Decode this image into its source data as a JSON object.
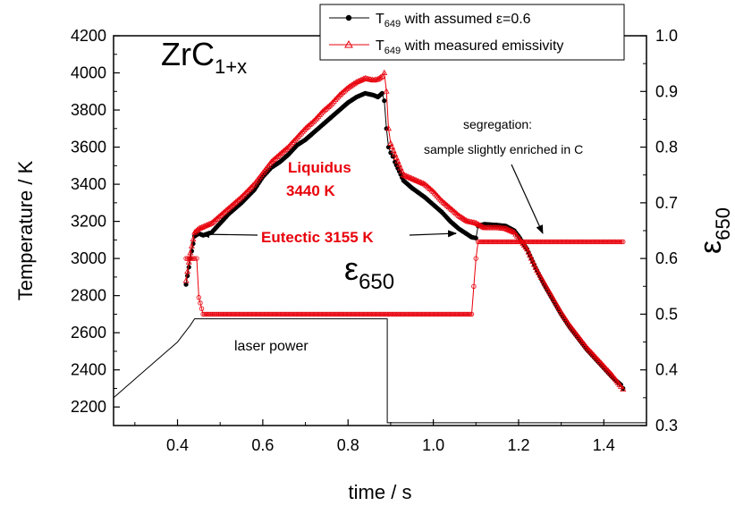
{
  "chart_data": {
    "type": "line",
    "title": "ZrC",
    "title_sub": "1+x",
    "xlabel": "time / s",
    "ylabel_left": "Temperature / K",
    "ylabel_right": "ε",
    "ylabel_right_sub": "650",
    "xlim": [
      0.25,
      1.5
    ],
    "ylim_left": [
      2100,
      4200
    ],
    "ylim_right": [
      0.3,
      1.0
    ],
    "x_ticks": [
      0.4,
      0.6,
      0.8,
      1.0,
      1.2,
      1.4
    ],
    "x_tick_labels": [
      "0.4",
      "0.6",
      "0.8",
      "1.0",
      "1.2",
      "1.4"
    ],
    "y_left_ticks": [
      2200,
      2400,
      2600,
      2800,
      3000,
      3200,
      3400,
      3600,
      3800,
      4000,
      4200
    ],
    "y_left_tick_labels": [
      "2200",
      "2400",
      "2600",
      "2800",
      "3000",
      "3200",
      "3400",
      "3600",
      "3800",
      "4000",
      "4200"
    ],
    "y_right_ticks": [
      0.3,
      0.4,
      0.5,
      0.6,
      0.7,
      0.8,
      0.9,
      1.0
    ],
    "y_right_tick_labels": [
      "0.3",
      "0.4",
      "0.5",
      "0.6",
      "0.7",
      "0.8",
      "0.9",
      "1.0"
    ],
    "grid": false,
    "legend_position": "top-right",
    "legend": [
      {
        "text_pre": "T",
        "text_sub": "649",
        "text_post": " with assumed ε=0.6",
        "color": "#000000",
        "marker": "circle"
      },
      {
        "text_pre": "T",
        "text_sub": "649",
        "text_post": " with measured emissivity",
        "color": "#e8000b",
        "marker": "triangle"
      }
    ],
    "series": [
      {
        "name": "T649 with assumed ε=0.6",
        "axis": "left",
        "color": "#000000",
        "marker": "circle",
        "points": [
          [
            0.42,
            2860
          ],
          [
            0.43,
            3000
          ],
          [
            0.44,
            3120
          ],
          [
            0.45,
            3135
          ],
          [
            0.46,
            3125
          ],
          [
            0.48,
            3140
          ],
          [
            0.5,
            3190
          ],
          [
            0.52,
            3240
          ],
          [
            0.55,
            3300
          ],
          [
            0.58,
            3370
          ],
          [
            0.6,
            3440
          ],
          [
            0.62,
            3490
          ],
          [
            0.64,
            3520
          ],
          [
            0.66,
            3560
          ],
          [
            0.68,
            3610
          ],
          [
            0.7,
            3640
          ],
          [
            0.72,
            3680
          ],
          [
            0.74,
            3720
          ],
          [
            0.76,
            3760
          ],
          [
            0.78,
            3800
          ],
          [
            0.8,
            3840
          ],
          [
            0.82,
            3870
          ],
          [
            0.84,
            3890
          ],
          [
            0.86,
            3880
          ],
          [
            0.87,
            3870
          ],
          [
            0.88,
            3890
          ],
          [
            0.885,
            3850
          ],
          [
            0.89,
            3700
          ],
          [
            0.895,
            3600
          ],
          [
            0.9,
            3570
          ],
          [
            0.905,
            3550
          ],
          [
            0.91,
            3520
          ],
          [
            0.92,
            3470
          ],
          [
            0.93,
            3420
          ],
          [
            0.95,
            3380
          ],
          [
            0.98,
            3330
          ],
          [
            1.0,
            3290
          ],
          [
            1.02,
            3250
          ],
          [
            1.04,
            3200
          ],
          [
            1.06,
            3160
          ],
          [
            1.08,
            3130
          ],
          [
            1.09,
            3115
          ],
          [
            1.1,
            3110
          ],
          [
            1.105,
            3175
          ],
          [
            1.12,
            3185
          ],
          [
            1.15,
            3180
          ],
          [
            1.17,
            3175
          ],
          [
            1.19,
            3150
          ],
          [
            1.2,
            3120
          ],
          [
            1.22,
            3050
          ],
          [
            1.24,
            2950
          ],
          [
            1.26,
            2860
          ],
          [
            1.28,
            2780
          ],
          [
            1.3,
            2700
          ],
          [
            1.32,
            2630
          ],
          [
            1.34,
            2570
          ],
          [
            1.36,
            2510
          ],
          [
            1.38,
            2460
          ],
          [
            1.4,
            2410
          ],
          [
            1.42,
            2360
          ],
          [
            1.44,
            2320
          ],
          [
            1.445,
            2300
          ]
        ]
      },
      {
        "name": "T649 with measured emissivity",
        "axis": "left",
        "color": "#e8000b",
        "marker": "triangle",
        "points": [
          [
            0.42,
            2880
          ],
          [
            0.43,
            3030
          ],
          [
            0.44,
            3140
          ],
          [
            0.45,
            3160
          ],
          [
            0.46,
            3170
          ],
          [
            0.48,
            3190
          ],
          [
            0.5,
            3230
          ],
          [
            0.52,
            3270
          ],
          [
            0.55,
            3330
          ],
          [
            0.58,
            3400
          ],
          [
            0.6,
            3460
          ],
          [
            0.62,
            3520
          ],
          [
            0.64,
            3560
          ],
          [
            0.66,
            3600
          ],
          [
            0.68,
            3650
          ],
          [
            0.7,
            3700
          ],
          [
            0.72,
            3740
          ],
          [
            0.74,
            3790
          ],
          [
            0.76,
            3830
          ],
          [
            0.78,
            3880
          ],
          [
            0.8,
            3920
          ],
          [
            0.82,
            3950
          ],
          [
            0.84,
            3970
          ],
          [
            0.86,
            3960
          ],
          [
            0.87,
            3965
          ],
          [
            0.88,
            3980
          ],
          [
            0.885,
            4000
          ],
          [
            0.89,
            3900
          ],
          [
            0.895,
            3700
          ],
          [
            0.9,
            3620
          ],
          [
            0.91,
            3560
          ],
          [
            0.93,
            3450
          ],
          [
            0.95,
            3430
          ],
          [
            0.98,
            3400
          ],
          [
            1.0,
            3360
          ],
          [
            1.02,
            3310
          ],
          [
            1.04,
            3270
          ],
          [
            1.06,
            3230
          ],
          [
            1.08,
            3200
          ],
          [
            1.1,
            3190
          ],
          [
            1.12,
            3165
          ],
          [
            1.15,
            3165
          ],
          [
            1.17,
            3160
          ],
          [
            1.19,
            3140
          ],
          [
            1.2,
            3110
          ],
          [
            1.22,
            3050
          ],
          [
            1.24,
            2950
          ],
          [
            1.26,
            2870
          ],
          [
            1.28,
            2790
          ],
          [
            1.3,
            2710
          ],
          [
            1.32,
            2640
          ],
          [
            1.34,
            2580
          ],
          [
            1.36,
            2520
          ],
          [
            1.38,
            2470
          ],
          [
            1.4,
            2420
          ],
          [
            1.42,
            2370
          ],
          [
            1.44,
            2310
          ],
          [
            1.445,
            2295
          ]
        ]
      },
      {
        "name": "ε650",
        "axis": "right",
        "color": "#e8000b",
        "marker": "circle-open",
        "points": [
          [
            0.42,
            0.6
          ],
          [
            0.44,
            0.6
          ],
          [
            0.445,
            0.6
          ],
          [
            0.45,
            0.53
          ],
          [
            0.46,
            0.5
          ],
          [
            0.5,
            0.5
          ],
          [
            0.6,
            0.5
          ],
          [
            0.7,
            0.5
          ],
          [
            0.8,
            0.5
          ],
          [
            0.9,
            0.5
          ],
          [
            1.0,
            0.5
          ],
          [
            1.09,
            0.5
          ],
          [
            1.095,
            0.55
          ],
          [
            1.1,
            0.6
          ],
          [
            1.105,
            0.63
          ],
          [
            1.2,
            0.63
          ],
          [
            1.3,
            0.63
          ],
          [
            1.4,
            0.63
          ],
          [
            1.445,
            0.63
          ]
        ]
      },
      {
        "name": "laser power",
        "axis": "left",
        "color": "#000000",
        "marker": "none",
        "points": [
          [
            0.25,
            2250
          ],
          [
            0.26,
            2270
          ],
          [
            0.27,
            2290
          ],
          [
            0.28,
            2310
          ],
          [
            0.29,
            2330
          ],
          [
            0.3,
            2350
          ],
          [
            0.31,
            2370
          ],
          [
            0.32,
            2390
          ],
          [
            0.33,
            2410
          ],
          [
            0.34,
            2430
          ],
          [
            0.35,
            2450
          ],
          [
            0.36,
            2470
          ],
          [
            0.37,
            2490
          ],
          [
            0.38,
            2510
          ],
          [
            0.39,
            2530
          ],
          [
            0.4,
            2550
          ],
          [
            0.41,
            2580
          ],
          [
            0.42,
            2610
          ],
          [
            0.43,
            2640
          ],
          [
            0.44,
            2675
          ],
          [
            0.6,
            2675
          ],
          [
            0.8,
            2675
          ],
          [
            0.892,
            2675
          ],
          [
            0.892,
            2115
          ],
          [
            1.0,
            2115
          ],
          [
            1.2,
            2115
          ],
          [
            1.5,
            2115
          ]
        ]
      }
    ],
    "annotations": {
      "liquidus_line1": "Liquidus",
      "liquidus_line2": "3440 K",
      "eutectic": "Eutectic 3155 K",
      "epsilon_symbol": "ε",
      "epsilon_sub": "650",
      "laser_power": "laser power",
      "segregation_line1": "segregation:",
      "segregation_line2": "sample slightly enriched in C"
    }
  }
}
